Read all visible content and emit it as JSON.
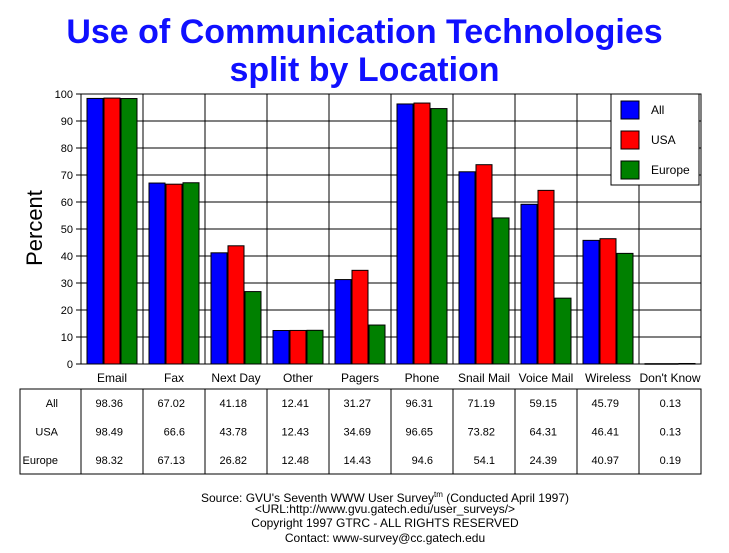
{
  "chart_data": {
    "type": "bar",
    "title": "Use of Communication Technologies",
    "subtitle": "split by Location",
    "ylabel": "Percent",
    "xlabel": "",
    "ylim": [
      0,
      100
    ],
    "yticks": [
      0,
      10,
      20,
      30,
      40,
      50,
      60,
      70,
      80,
      90,
      100
    ],
    "grid": true,
    "legend_position": "top-right",
    "categories": [
      "Email",
      "Fax",
      "Next Day",
      "Other",
      "Pagers",
      "Phone",
      "Snail Mail",
      "Voice Mail",
      "Wireless",
      "Don't Know"
    ],
    "series": [
      {
        "name": "All",
        "color": "#0000ff",
        "values": [
          98.36,
          67.02,
          41.18,
          12.41,
          31.27,
          96.31,
          71.19,
          59.15,
          45.79,
          0.13
        ]
      },
      {
        "name": "USA",
        "color": "#ff0000",
        "values": [
          98.49,
          66.6,
          43.78,
          12.43,
          34.69,
          96.65,
          73.82,
          64.31,
          46.41,
          0.13
        ]
      },
      {
        "name": "Europe",
        "color": "#008000",
        "values": [
          98.32,
          67.13,
          26.82,
          12.48,
          14.43,
          94.6,
          54.1,
          24.39,
          40.97,
          0.19
        ]
      }
    ],
    "table_values": [
      [
        "98.36",
        "67.02",
        "41.18",
        "12.41",
        "31.27",
        "96.31",
        "71.19",
        "59.15",
        "45.79",
        "0.13"
      ],
      [
        "98.49",
        "66.6",
        "43.78",
        "12.43",
        "34.69",
        "96.65",
        "73.82",
        "64.31",
        "46.41",
        "0.13"
      ],
      [
        "98.32",
        "67.13",
        "26.82",
        "12.48",
        "14.43",
        "94.6",
        "54.1",
        "24.39",
        "40.97",
        "0.19"
      ]
    ]
  },
  "footer": {
    "source_prefix": "Source: GVU's Seventh WWW User Survey",
    "source_sup": "tm",
    "source_suffix": " (Conducted April 1997)",
    "url": "<URL:http://www.gvu.gatech.edu/user_surveys/>",
    "copyright": "Copyright 1997 GTRC - ALL RIGHTS RESERVED",
    "contact": "Contact: www-survey@cc.gatech.edu"
  }
}
